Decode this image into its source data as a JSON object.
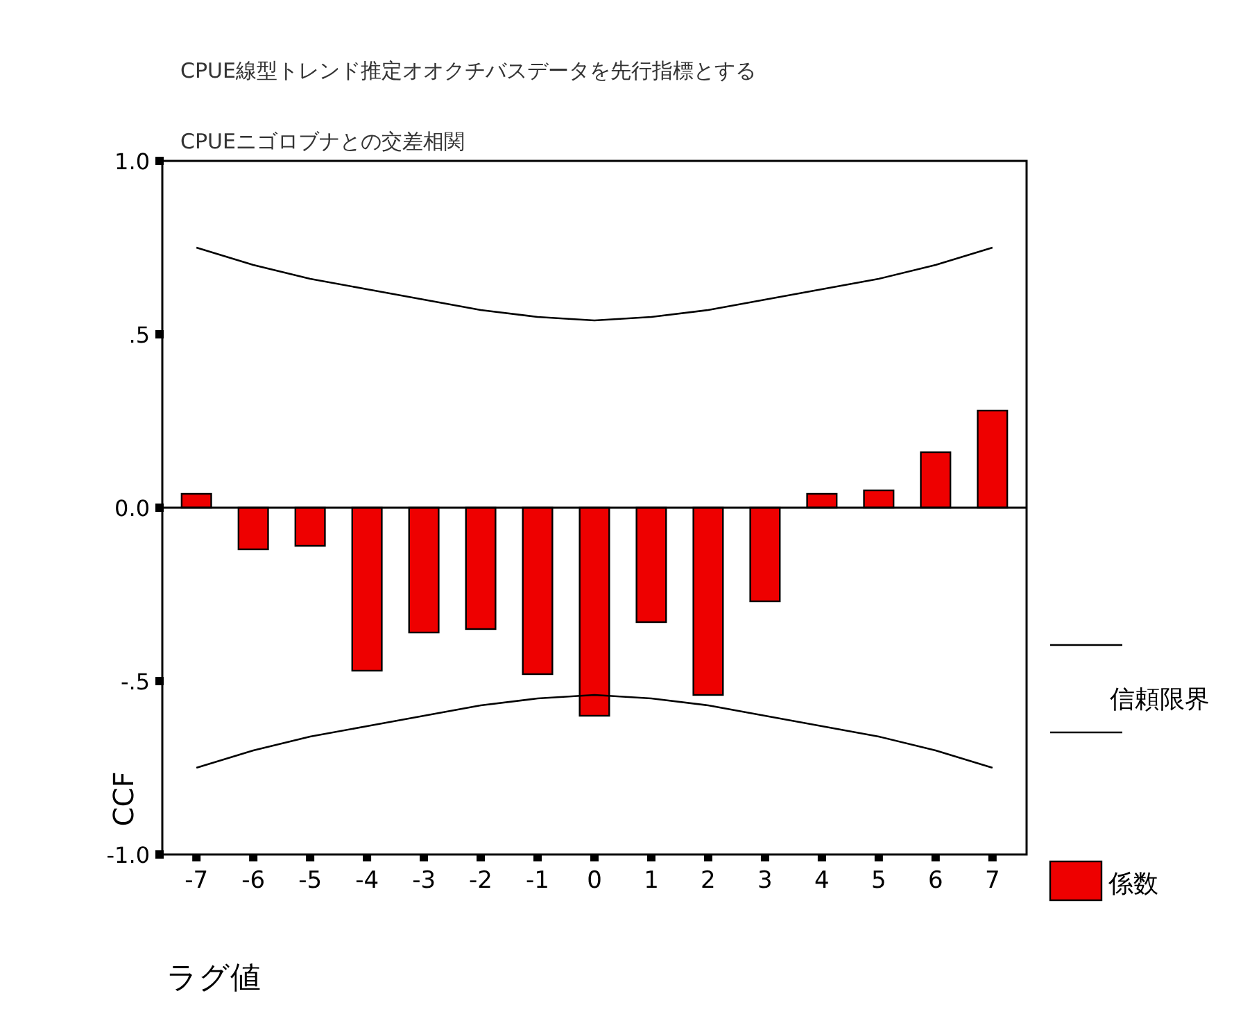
{
  "chart_data": {
    "type": "bar",
    "title": "CPUE線型トレンド推定オオクチバスデータを先行指標とする",
    "subtitle": "CPUEニゴロブナとの交差相関",
    "xlabel": "ラグ値",
    "ylabel": "CCF",
    "categories": [
      "-7",
      "-6",
      "-5",
      "-4",
      "-3",
      "-2",
      "-1",
      "0",
      "1",
      "2",
      "3",
      "4",
      "5",
      "6",
      "7"
    ],
    "series": [
      {
        "name": "係数",
        "color": "#ee0000",
        "values": [
          0.04,
          -0.12,
          -0.11,
          -0.47,
          -0.36,
          -0.35,
          -0.48,
          -0.6,
          -0.33,
          -0.54,
          -0.27,
          0.04,
          0.05,
          0.16,
          0.28
        ]
      },
      {
        "name": "信頼限界",
        "type": "line",
        "color": "#000000",
        "values": [
          0.75,
          0.7,
          0.66,
          0.63,
          0.6,
          0.57,
          0.55,
          0.54,
          0.55,
          0.57,
          0.6,
          0.63,
          0.66,
          0.7,
          0.75
        ]
      },
      {
        "type": "line",
        "color": "#000000",
        "values": [
          -0.75,
          -0.7,
          -0.66,
          -0.63,
          -0.6,
          -0.57,
          -0.55,
          -0.54,
          -0.55,
          -0.57,
          -0.6,
          -0.63,
          -0.66,
          -0.7,
          -0.75
        ]
      }
    ],
    "ylim": [
      -1.0,
      1.0
    ],
    "yticks": [
      {
        "value": 1.0,
        "label": "1.0"
      },
      {
        "value": 0.5,
        "label": ".5"
      },
      {
        "value": 0.0,
        "label": "0.0"
      },
      {
        "value": -0.5,
        "label": "-.5"
      },
      {
        "value": -1.0,
        "label": "-1.0"
      }
    ],
    "ref_lines": [
      {
        "axis": "y",
        "value": 0.0,
        "color": "#000000"
      }
    ],
    "legend": "right"
  }
}
